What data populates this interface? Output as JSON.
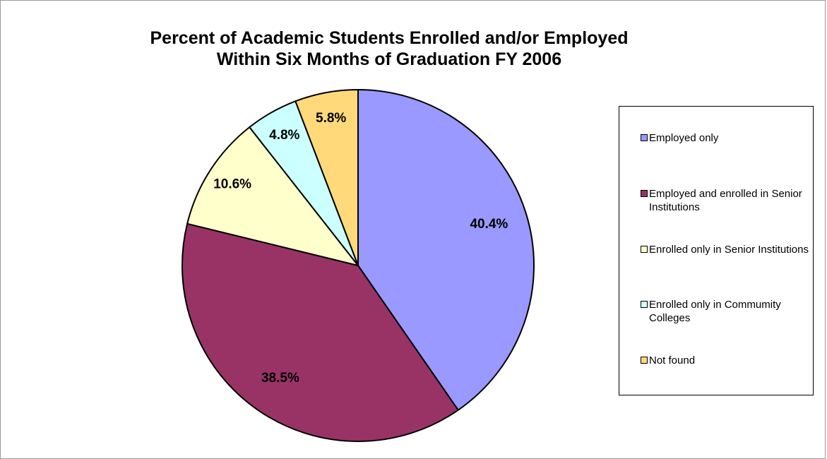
{
  "chart_data": {
    "type": "pie",
    "title_lines": [
      "Percent of Academic Students Enrolled and/or Employed",
      "Within Six Months of Graduation FY 2006"
    ],
    "categories": [
      "Employed only",
      "Employed and enrolled in Senior Institutions",
      "Enrolled only in Senior Institutions",
      "Enrolled only in Commumity Colleges",
      "Not found"
    ],
    "values": [
      40.4,
      38.5,
      10.6,
      4.8,
      5.8
    ],
    "data_labels": [
      "40.4%",
      "38.5%",
      "10.6%",
      "4.8%",
      "5.8%"
    ],
    "colors": [
      "#9999FF",
      "#993366",
      "#FFFFCC",
      "#CCFFFF",
      "#FFD97A"
    ],
    "legend_placement": "right",
    "start_angle": "top",
    "direction": "clockwise"
  }
}
